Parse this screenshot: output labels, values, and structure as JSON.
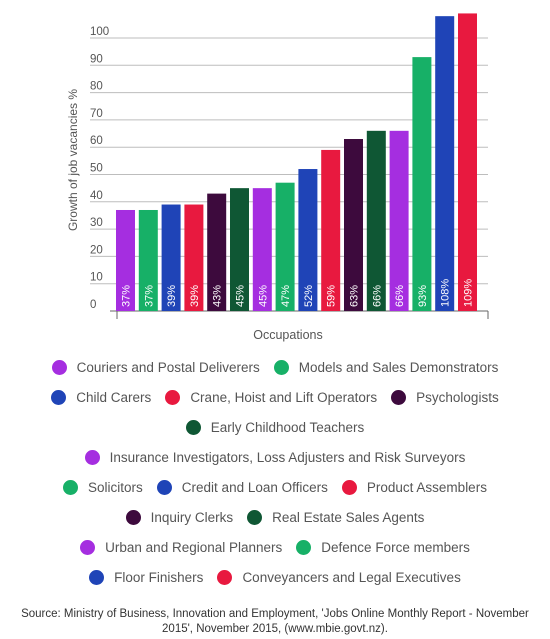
{
  "chart_data": {
    "type": "bar",
    "ylabel": "Growth of job vacancies %",
    "xlabel": "Occupations",
    "ylim": [
      0,
      110
    ],
    "yticks": [
      0,
      10,
      20,
      30,
      40,
      50,
      60,
      70,
      80,
      90,
      100
    ],
    "grid": true,
    "categories": [
      "Couriers and Postal Deliverers",
      "Models and Sales Demonstrators",
      "Child Carers",
      "Crane, Hoist and Lift Operators",
      "Psychologists",
      "Early Childhood Teachers",
      "Insurance Investigators, Loss Adjusters and Risk Surveyors",
      "Solicitors",
      "Credit and Loan Officers",
      "Product Assemblers",
      "Inquiry Clerks",
      "Real Estate Sales Agents",
      "Urban and Regional Planners",
      "Defence Force members",
      "Floor Finishers",
      "Conveyancers and Legal Executives"
    ],
    "values": [
      37,
      37,
      39,
      39,
      43,
      45,
      45,
      47,
      52,
      59,
      63,
      66,
      66,
      93,
      108,
      109
    ],
    "value_labels": [
      "37%",
      "37%",
      "39%",
      "39%",
      "43%",
      "45%",
      "45%",
      "47%",
      "52%",
      "59%",
      "63%",
      "66%",
      "66%",
      "93%",
      "108%",
      "109%"
    ],
    "colors": [
      "#a52ee0",
      "#17b067",
      "#1f44b7",
      "#e8193f",
      "#3d0a3d",
      "#0f5734",
      "#a52ee0",
      "#17b067",
      "#1f44b7",
      "#e8193f",
      "#3d0a3d",
      "#0f5734",
      "#a52ee0",
      "#17b067",
      "#1f44b7",
      "#e8193f"
    ]
  },
  "legend_rows": [
    [
      0,
      1
    ],
    [
      2,
      3,
      4
    ],
    [
      5
    ],
    [
      6
    ],
    [
      7,
      8,
      9
    ],
    [
      10,
      11
    ],
    [
      12,
      13
    ],
    [
      14,
      15
    ]
  ],
  "source": "Source: Ministry of Business, Innovation and Employment, 'Jobs Online Monthly Report - November 2015', November 2015, (www.mbie.govt.nz)."
}
